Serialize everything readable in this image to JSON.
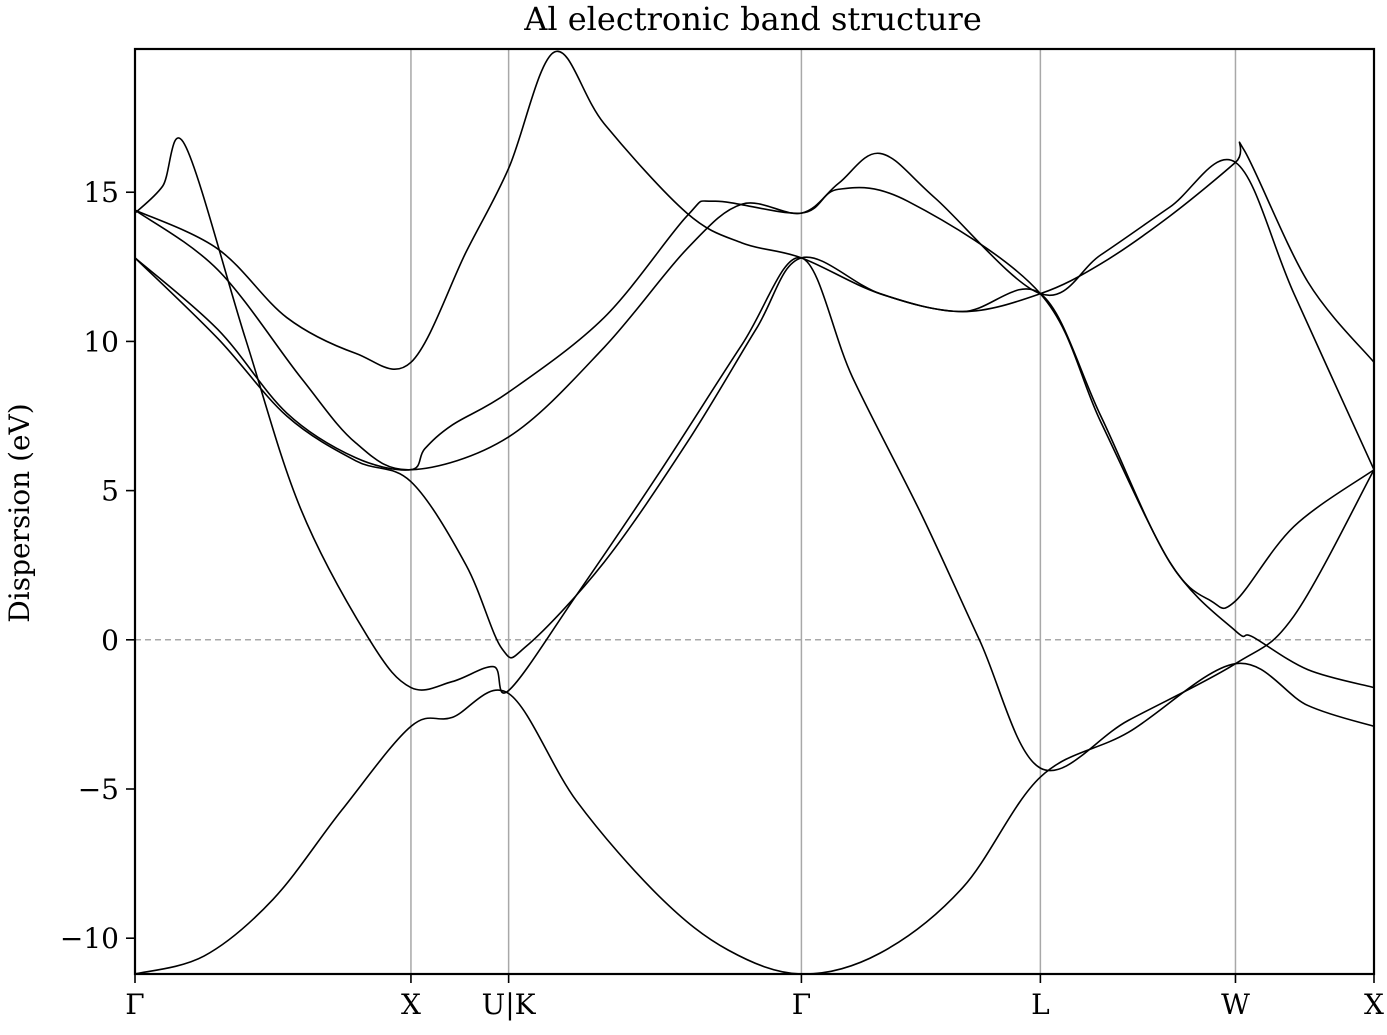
{
  "chart_data": {
    "type": "line",
    "title": "Al electronic band structure",
    "xlabel": "",
    "ylabel": "Dispersion (eV)",
    "ylim": [
      -11.2,
      19.8
    ],
    "yticks": [
      {
        "value": 15,
        "label": "15"
      },
      {
        "value": 10,
        "label": "10"
      },
      {
        "value": 5,
        "label": "5"
      },
      {
        "value": 0,
        "label": "0"
      },
      {
        "value": -5,
        "label": "−5"
      },
      {
        "value": -10,
        "label": "−10"
      }
    ],
    "xlim": [
      0,
      4.49
    ],
    "kpoints": [
      {
        "label": "Γ",
        "position": 0.0
      },
      {
        "label": "X",
        "position": 1.0
      },
      {
        "label": "U|K",
        "position": 1.354
      },
      {
        "label": "Γ",
        "position": 2.415
      },
      {
        "label": "L",
        "position": 3.281
      },
      {
        "label": "W",
        "position": 3.988
      },
      {
        "label": "X",
        "position": 4.49
      }
    ],
    "fermi_level": 0,
    "grid": "vertical at high-symmetry points",
    "legend": "none",
    "line_color": "#000000",
    "series": [
      {
        "values": [
          [
            0.0,
            -11.2
          ],
          [
            0.25,
            -10.6
          ],
          [
            0.5,
            -8.7
          ],
          [
            0.75,
            -5.7
          ],
          [
            1.0,
            -2.9
          ],
          [
            1.15,
            -2.6
          ],
          [
            1.354,
            -1.8
          ],
          [
            1.6,
            -5.4
          ],
          [
            1.9,
            -8.6
          ],
          [
            2.15,
            -10.4
          ],
          [
            2.415,
            -11.2
          ],
          [
            2.7,
            -10.5
          ],
          [
            3.0,
            -8.3
          ],
          [
            3.281,
            -4.6
          ],
          [
            3.6,
            -3.1
          ],
          [
            3.988,
            -0.8
          ],
          [
            4.25,
            -2.2
          ],
          [
            4.49,
            -2.9
          ]
        ]
      },
      {
        "values": [
          [
            0.0,
            14.3
          ],
          [
            0.1,
            15.2
          ],
          [
            0.18,
            16.6
          ],
          [
            0.4,
            10.1
          ],
          [
            0.6,
            4.4
          ],
          [
            0.85,
            0.0
          ],
          [
            1.0,
            -1.6
          ],
          [
            1.15,
            -1.4
          ],
          [
            1.3,
            -0.9
          ],
          [
            1.354,
            -1.7
          ],
          [
            1.6,
            1.5
          ],
          [
            1.9,
            5.6
          ],
          [
            2.2,
            9.9
          ],
          [
            2.415,
            12.8
          ],
          [
            2.6,
            8.8
          ],
          [
            2.85,
            4.2
          ],
          [
            3.06,
            0.0
          ],
          [
            3.281,
            -4.3
          ],
          [
            3.6,
            -2.7
          ],
          [
            3.988,
            -0.8
          ],
          [
            4.2,
            0.8
          ],
          [
            4.49,
            5.7
          ]
        ]
      },
      {
        "values": [
          [
            0.0,
            12.8
          ],
          [
            0.3,
            10.1
          ],
          [
            0.55,
            7.5
          ],
          [
            0.8,
            6.0
          ],
          [
            1.0,
            5.3
          ],
          [
            1.2,
            2.5
          ],
          [
            1.33,
            -0.3
          ],
          [
            1.42,
            -0.2
          ],
          [
            1.7,
            2.6
          ],
          [
            2.0,
            6.6
          ],
          [
            2.25,
            10.4
          ],
          [
            2.415,
            12.8
          ],
          [
            2.7,
            11.6
          ],
          [
            3.0,
            11.0
          ],
          [
            3.281,
            11.6
          ],
          [
            3.5,
            7.5
          ],
          [
            3.75,
            2.6
          ],
          [
            3.988,
            0.3
          ],
          [
            4.05,
            0.1
          ],
          [
            4.25,
            -1.0
          ],
          [
            4.49,
            -1.6
          ]
        ]
      },
      {
        "values": [
          [
            0.0,
            12.8
          ],
          [
            0.3,
            10.4
          ],
          [
            0.55,
            7.6
          ],
          [
            0.8,
            6.1
          ],
          [
            1.0,
            5.7
          ],
          [
            1.05,
            6.4
          ],
          [
            1.15,
            7.2
          ],
          [
            1.354,
            8.3
          ],
          [
            1.7,
            10.8
          ],
          [
            2.0,
            14.2
          ],
          [
            2.1,
            14.7
          ],
          [
            2.415,
            14.3
          ],
          [
            2.55,
            15.1
          ],
          [
            2.8,
            14.7
          ],
          [
            3.281,
            11.6
          ],
          [
            3.5,
            7.3
          ],
          [
            3.75,
            2.6
          ],
          [
            3.9,
            1.3
          ],
          [
            3.988,
            1.3
          ],
          [
            4.2,
            3.8
          ],
          [
            4.49,
            5.7
          ]
        ]
      },
      {
        "values": [
          [
            0.0,
            14.4
          ],
          [
            0.3,
            12.4
          ],
          [
            0.6,
            8.8
          ],
          [
            0.8,
            6.6
          ],
          [
            1.0,
            5.7
          ],
          [
            1.354,
            6.8
          ],
          [
            1.7,
            9.8
          ],
          [
            2.0,
            13.1
          ],
          [
            2.2,
            14.6
          ],
          [
            2.415,
            14.3
          ],
          [
            2.55,
            15.3
          ],
          [
            2.7,
            16.3
          ],
          [
            2.9,
            14.8
          ],
          [
            3.281,
            11.6
          ],
          [
            3.5,
            12.9
          ],
          [
            3.75,
            14.5
          ],
          [
            3.988,
            16.0
          ],
          [
            4.2,
            11.6
          ],
          [
            4.49,
            5.7
          ]
        ]
      },
      {
        "values": [
          [
            0.0,
            14.4
          ],
          [
            0.3,
            13.1
          ],
          [
            0.55,
            10.8
          ],
          [
            0.8,
            9.6
          ],
          [
            1.0,
            9.3
          ],
          [
            1.2,
            13.0
          ],
          [
            1.354,
            15.8
          ],
          [
            1.52,
            19.7
          ],
          [
            1.7,
            17.3
          ],
          [
            2.0,
            14.3
          ],
          [
            2.2,
            13.3
          ],
          [
            2.415,
            12.8
          ],
          [
            2.7,
            11.6
          ],
          [
            3.0,
            11.0
          ],
          [
            3.281,
            11.6
          ],
          [
            3.5,
            12.6
          ],
          [
            3.75,
            14.2
          ],
          [
            3.988,
            16.0
          ],
          [
            4.02,
            16.4
          ],
          [
            4.25,
            12.0
          ],
          [
            4.49,
            9.3
          ]
        ]
      }
    ]
  }
}
